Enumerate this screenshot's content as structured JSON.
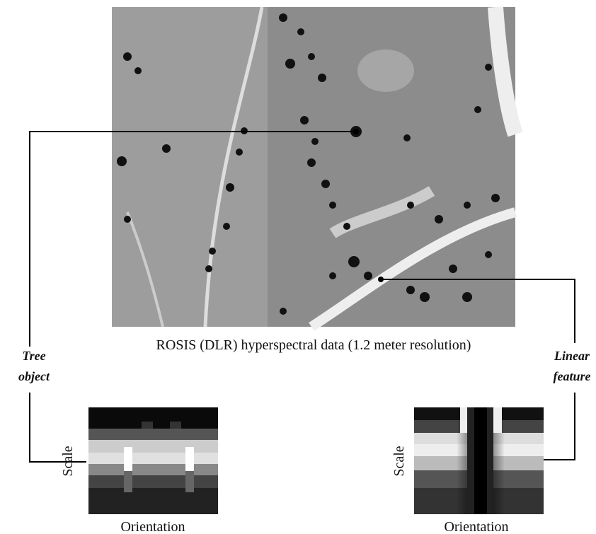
{
  "image_caption": "ROSIS (DLR) hyperspectral data (1.2 meter resolution)",
  "left_label": {
    "lines": [
      "Tree",
      "object"
    ]
  },
  "right_label": {
    "lines": [
      "Linear",
      "feature"
    ]
  },
  "left_plot": {
    "y_label": "Scale",
    "x_label": "Orientation"
  },
  "right_plot": {
    "y_label": "Scale",
    "x_label": "Orientation"
  }
}
